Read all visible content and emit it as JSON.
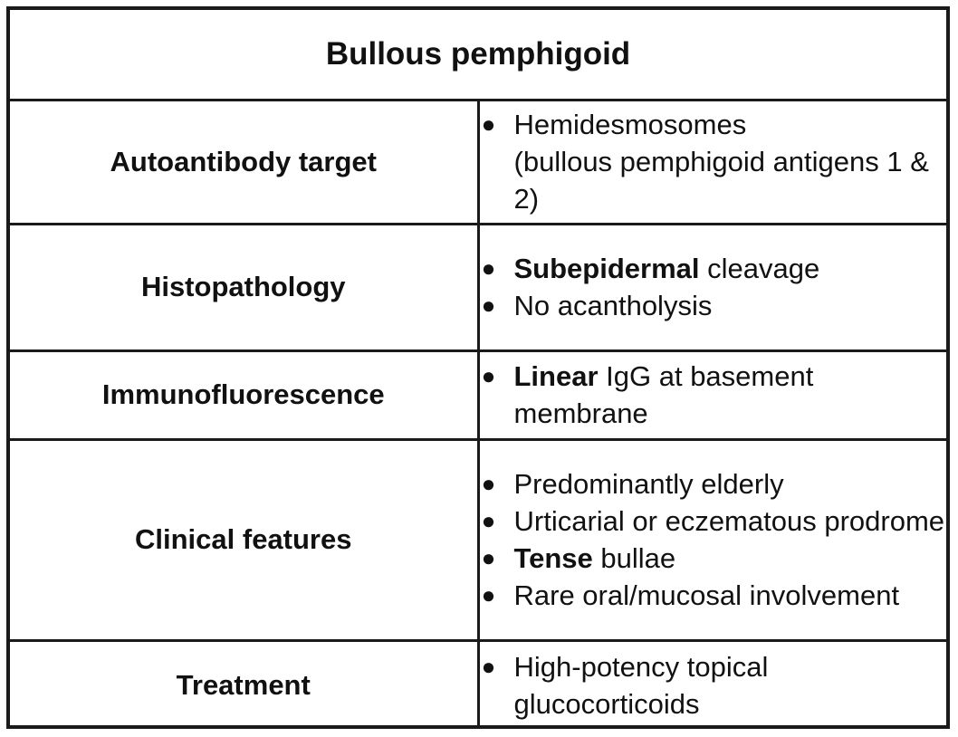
{
  "table": {
    "title": "Bullous pemphigoid",
    "rows": [
      {
        "label": "Autoantibody target",
        "items": [
          {
            "bold": "",
            "text": "Hemidesmosomes",
            "sub": "(bullous pemphigoid antigens 1 & 2)"
          }
        ]
      },
      {
        "label": "Histopathology",
        "items": [
          {
            "bold": "Subepidermal",
            "text": " cleavage"
          },
          {
            "bold": "",
            "text": "No acantholysis"
          }
        ]
      },
      {
        "label": "Immunofluorescence",
        "items": [
          {
            "bold": "Linear",
            "text": " IgG at basement membrane"
          }
        ]
      },
      {
        "label": "Clinical features",
        "items": [
          {
            "bold": "",
            "text": "Predominantly elderly"
          },
          {
            "bold": "",
            "text": "Urticarial or eczematous prodrome"
          },
          {
            "bold": "Tense",
            "text": " bullae"
          },
          {
            "bold": "",
            "text": "Rare oral/mucosal involvement"
          }
        ]
      },
      {
        "label": "Treatment",
        "items": [
          {
            "bold": "",
            "text": "High-potency topical glucocorticoids"
          }
        ]
      }
    ]
  }
}
